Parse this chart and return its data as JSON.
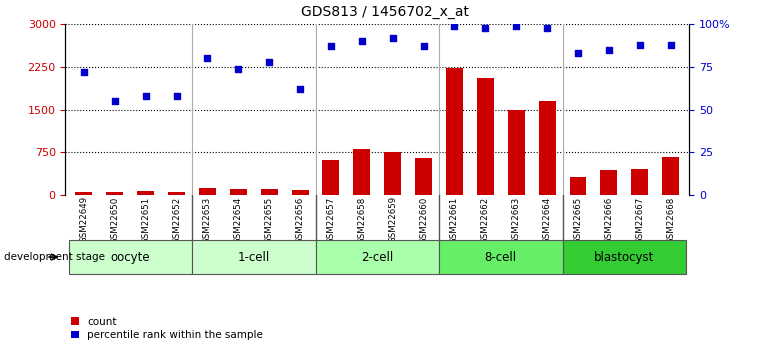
{
  "title": "GDS813 / 1456702_x_at",
  "samples": [
    "GSM22649",
    "GSM22650",
    "GSM22651",
    "GSM22652",
    "GSM22653",
    "GSM22654",
    "GSM22655",
    "GSM22656",
    "GSM22657",
    "GSM22658",
    "GSM22659",
    "GSM22660",
    "GSM22661",
    "GSM22662",
    "GSM22663",
    "GSM22664",
    "GSM22665",
    "GSM22666",
    "GSM22667",
    "GSM22668"
  ],
  "counts": [
    60,
    45,
    70,
    55,
    130,
    100,
    110,
    85,
    620,
    800,
    760,
    650,
    2230,
    2050,
    1500,
    1650,
    320,
    430,
    460,
    670
  ],
  "percentiles": [
    72,
    55,
    58,
    58,
    80,
    74,
    78,
    62,
    87,
    90,
    92,
    87,
    99,
    98,
    99,
    98,
    83,
    85,
    88,
    88
  ],
  "stages": [
    {
      "name": "oocyte",
      "start": 0,
      "end": 4,
      "color": "#ccffcc"
    },
    {
      "name": "1-cell",
      "start": 4,
      "end": 8,
      "color": "#ccffcc"
    },
    {
      "name": "2-cell",
      "start": 8,
      "end": 12,
      "color": "#aaffaa"
    },
    {
      "name": "8-cell",
      "start": 12,
      "end": 16,
      "color": "#66ee66"
    },
    {
      "name": "blastocyst",
      "start": 16,
      "end": 20,
      "color": "#33cc33"
    }
  ],
  "bar_color": "#cc0000",
  "dot_color": "#0000cc",
  "left_ylim": [
    0,
    3000
  ],
  "right_ylim": [
    0,
    100
  ],
  "left_yticks": [
    0,
    750,
    1500,
    2250,
    3000
  ],
  "right_yticks": [
    0,
    25,
    50,
    75,
    100
  ],
  "bg_color": "#ffffff",
  "sample_bg_color": "#cccccc",
  "dev_stage_label": "development stage",
  "legend_count": "count",
  "legend_percentile": "percentile rank within the sample"
}
